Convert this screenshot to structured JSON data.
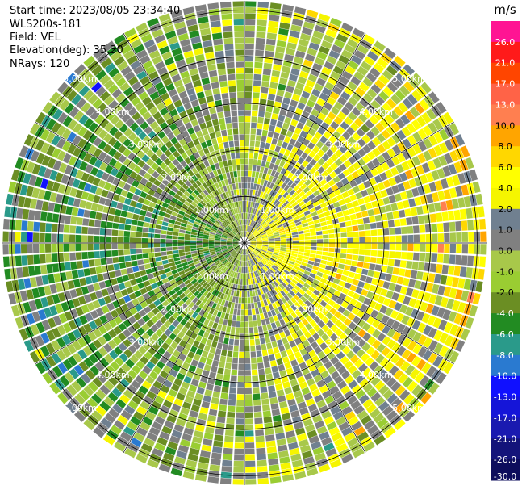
{
  "header": {
    "start_time": "Start time: 2023/08/05 23:34:40",
    "instrument": "WLS200s-181",
    "field": "Field: VEL",
    "elevation": "Elevation(deg): 35.30",
    "nrays": "NRays: 120"
  },
  "chart_data": {
    "type": "polar-ppi",
    "field": "VEL",
    "unit": "m/s",
    "n_rays": 120,
    "elevation_deg": 35.3,
    "range_rings_km": [
      1.0,
      2.0,
      3.0,
      4.0,
      5.0
    ],
    "range_labels": [
      "1.00km",
      "2.00km",
      "3.00km",
      "4.00km",
      "5.00km"
    ],
    "max_range_km": 5.2,
    "spokes_deg": [
      0,
      30,
      60,
      90,
      120,
      150,
      180,
      210,
      240,
      270,
      300,
      330
    ],
    "pattern": {
      "east_half": "mostly positive velocities (yellow, 0 to 6 m/s)",
      "west_half": "mostly negative velocities (green, -2 to -8 m/s)",
      "far_range": "noisy values spanning the full scale"
    },
    "colorbar": {
      "bounds": [
        -30.0,
        -26.0,
        -21.0,
        -17.0,
        -13.0,
        -10.0,
        -8.0,
        -6.0,
        -4.0,
        -2.0,
        -1.0,
        0.0,
        1.0,
        2.0,
        4.0,
        6.0,
        8.0,
        10.0,
        13.0,
        17.0,
        21.0,
        26.0
      ],
      "tick_labels": [
        "-30.0",
        "-26.0",
        "-21.0",
        "-17.0",
        "-13.0",
        "-10.0",
        "-8.0",
        "-6.0",
        "-4.0",
        "-2.0",
        "-1.0",
        "0.0",
        "1.0",
        "2.0",
        "4.0",
        "6.0",
        "8.0",
        "10.0",
        "13.0",
        "17.0",
        "21.0",
        "26.0"
      ],
      "colors": [
        "#0d0d5c",
        "#14147a",
        "#1a1ab0",
        "#1515d8",
        "#1010ff",
        "#2a7ad0",
        "#2a9a8a",
        "#228b22",
        "#6b8e23",
        "#9acd32",
        "#a8c84a",
        "#808080",
        "#708090",
        "#f5f500",
        "#ffff00",
        "#ffd700",
        "#ffa500",
        "#ff7f50",
        "#ff6347",
        "#ff4500",
        "#ff1a1a",
        "#ff1493"
      ]
    }
  },
  "colors": {
    "ring": "#000000",
    "gap": "#ffffff",
    "label": "#ffffff"
  }
}
